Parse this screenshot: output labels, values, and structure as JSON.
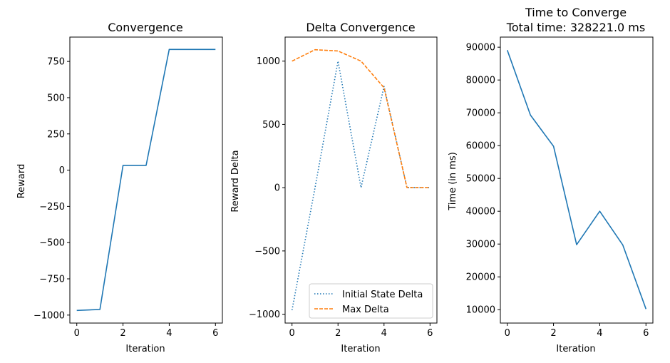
{
  "chart_data": [
    {
      "type": "line",
      "title": "Convergence",
      "xlabel": "Iteration",
      "ylabel": "Reward",
      "xlim": [
        -0.3,
        6.3
      ],
      "ylim": [
        -1055,
        918
      ],
      "xticks": [
        0,
        2,
        4,
        6
      ],
      "yticks": [
        -1000,
        -750,
        -500,
        -250,
        0,
        250,
        500,
        750
      ],
      "ytick_labels": [
        "−1000",
        "−750",
        "−500",
        "−250",
        "0",
        "250",
        "500",
        "750"
      ],
      "series": [
        {
          "style": "solid",
          "color": "#1f77b4",
          "x": [
            0,
            1,
            2,
            3,
            4,
            5,
            6
          ],
          "y": [
            -968,
            -961,
            33,
            33,
            833,
            833,
            833
          ]
        }
      ]
    },
    {
      "type": "line",
      "title": "Delta Convergence",
      "xlabel": "Iteration",
      "ylabel": "Reward Delta",
      "xlim": [
        -0.3,
        6.3
      ],
      "ylim": [
        -1070,
        1190
      ],
      "xticks": [
        0,
        2,
        4,
        6
      ],
      "yticks": [
        -1000,
        -500,
        0,
        500,
        1000
      ],
      "ytick_labels": [
        "−1000",
        "−500",
        "0",
        "500",
        "1000"
      ],
      "legend_position": "lower-right",
      "series": [
        {
          "name": "Initial State Delta",
          "style": "dotted",
          "color": "#1f77b4",
          "x": [
            0,
            1,
            2,
            3,
            4,
            5,
            6
          ],
          "y": [
            -968,
            0,
            1000,
            0,
            800,
            0,
            0
          ]
        },
        {
          "name": "Max Delta",
          "style": "dashed",
          "color": "#ff7f0e",
          "x": [
            0,
            1,
            2,
            3,
            4,
            5,
            6
          ],
          "y": [
            1000,
            1090,
            1080,
            1000,
            790,
            0,
            0
          ]
        }
      ]
    },
    {
      "type": "line",
      "title": "Time to Converge",
      "subtitle": "Total time: 328221.0 ms",
      "xlabel": "Iteration",
      "ylabel": "Time (in ms)",
      "xlim": [
        -0.3,
        6.3
      ],
      "ylim": [
        5920,
        93080
      ],
      "xticks": [
        0,
        2,
        4,
        6
      ],
      "yticks": [
        10000,
        20000,
        30000,
        40000,
        50000,
        60000,
        70000,
        80000,
        90000
      ],
      "ytick_labels": [
        "10000",
        "20000",
        "30000",
        "40000",
        "50000",
        "60000",
        "70000",
        "80000",
        "90000"
      ],
      "series": [
        {
          "style": "solid",
          "color": "#1f77b4",
          "x": [
            0,
            1,
            2,
            3,
            4,
            5,
            6
          ],
          "y": [
            89100,
            69300,
            59800,
            29800,
            40000,
            29700,
            10200
          ]
        }
      ]
    }
  ]
}
